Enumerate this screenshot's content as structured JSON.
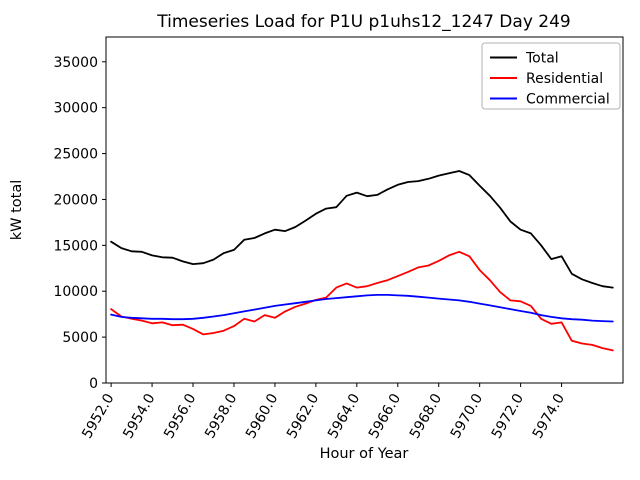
{
  "chart_data": {
    "type": "line",
    "title": "Timeseries Load for P1U p1uhs12_1247  Day 249",
    "xlabel": "Hour of Year",
    "ylabel": "kW total",
    "xlim": [
      5951.75,
      5977.0
    ],
    "ylim": [
      0,
      37700
    ],
    "xticks": [
      5952,
      5954,
      5956,
      5958,
      5960,
      5962,
      5964,
      5966,
      5968,
      5970,
      5972,
      5974
    ],
    "xtick_labels": [
      "5952.0",
      "5954.0",
      "5956.0",
      "5958.0",
      "5960.0",
      "5962.0",
      "5964.0",
      "5966.0",
      "5968.0",
      "5970.0",
      "5972.0",
      "5974.0"
    ],
    "xtick_rotation_deg": 60,
    "yticks": [
      0,
      5000,
      10000,
      15000,
      20000,
      25000,
      30000,
      35000
    ],
    "ytick_labels": [
      "0",
      "5000",
      "10000",
      "15000",
      "20000",
      "25000",
      "30000",
      "35000"
    ],
    "grid": false,
    "legend": {
      "position": "upper right",
      "border_color": "#b3b3b3",
      "background": "#ffffff"
    },
    "axis_color": "#000000",
    "x": [
      5952.0,
      5952.5,
      5953.0,
      5953.5,
      5954.0,
      5954.5,
      5955.0,
      5955.5,
      5956.0,
      5956.5,
      5957.0,
      5957.5,
      5958.0,
      5958.5,
      5959.0,
      5959.5,
      5960.0,
      5960.5,
      5961.0,
      5961.5,
      5962.0,
      5962.5,
      5963.0,
      5963.5,
      5964.0,
      5964.5,
      5965.0,
      5965.5,
      5966.0,
      5966.5,
      5967.0,
      5967.5,
      5968.0,
      5968.5,
      5969.0,
      5969.5,
      5970.0,
      5970.5,
      5971.0,
      5971.5,
      5972.0,
      5972.5,
      5973.0,
      5973.5,
      5974.0,
      5974.5,
      5975.0,
      5975.5,
      5976.0,
      5976.5
    ],
    "series": [
      {
        "name": "Total",
        "color": "#000000",
        "values": [
          15400,
          14700,
          14350,
          14300,
          13900,
          13700,
          13650,
          13250,
          12950,
          13050,
          13450,
          14150,
          14500,
          15600,
          15800,
          16300,
          16700,
          16550,
          17000,
          17700,
          18450,
          19000,
          19150,
          20400,
          20750,
          20350,
          20500,
          21100,
          21600,
          21900,
          22000,
          22250,
          22600,
          22850,
          23100,
          22650,
          21500,
          20400,
          19100,
          17600,
          16700,
          16300,
          15000,
          13500,
          13800,
          11900,
          11300,
          10900,
          10550,
          10400
        ]
      },
      {
        "name": "Residential",
        "color": "#ff0000",
        "values": [
          8050,
          7250,
          7000,
          6800,
          6500,
          6600,
          6300,
          6350,
          5900,
          5300,
          5450,
          5700,
          6200,
          7000,
          6700,
          7400,
          7100,
          7800,
          8300,
          8650,
          9050,
          9300,
          10400,
          10850,
          10400,
          10550,
          10900,
          11200,
          11650,
          12100,
          12600,
          12800,
          13300,
          13900,
          14300,
          13800,
          12300,
          11200,
          9900,
          9000,
          8900,
          8400,
          7000,
          6450,
          6600,
          4600,
          4300,
          4150,
          3800,
          3550
        ]
      },
      {
        "name": "Commercial",
        "color": "#0000ff",
        "values": [
          7450,
          7200,
          7100,
          7050,
          7000,
          7000,
          6950,
          6950,
          7000,
          7100,
          7250,
          7400,
          7600,
          7800,
          8000,
          8200,
          8400,
          8550,
          8700,
          8850,
          9000,
          9150,
          9250,
          9350,
          9450,
          9550,
          9600,
          9600,
          9550,
          9500,
          9400,
          9300,
          9200,
          9100,
          9000,
          8850,
          8650,
          8450,
          8250,
          8050,
          7850,
          7650,
          7400,
          7200,
          7050,
          6950,
          6900,
          6800,
          6750,
          6700
        ]
      }
    ]
  }
}
